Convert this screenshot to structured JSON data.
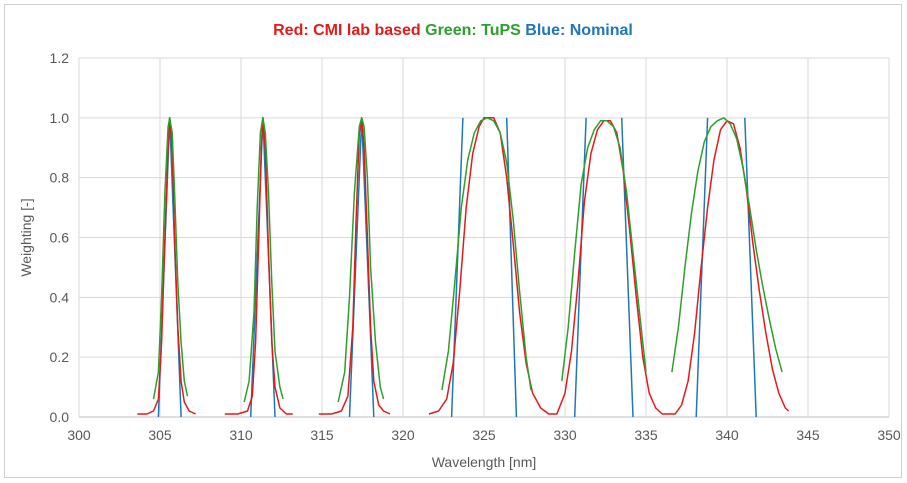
{
  "chart_data": {
    "type": "line",
    "title_parts": [
      {
        "text": "Red: CMI lab based",
        "color": "#e31a1c"
      },
      {
        "text": "Green: TuPS",
        "color": "#2ca02c"
      },
      {
        "text": "Blue: Nominal",
        "color": "#1f77b4"
      }
    ],
    "xlabel": "Wavelength [nm]",
    "ylabel": "Weighting [-]",
    "xlim": [
      300,
      350
    ],
    "ylim": [
      0,
      1.2
    ],
    "x_ticks": [
      300,
      305,
      310,
      315,
      320,
      325,
      330,
      335,
      340,
      345,
      350
    ],
    "y_ticks": [
      0.0,
      0.2,
      0.4,
      0.6,
      0.8,
      1.0,
      1.2
    ],
    "y_tick_labels": [
      "0.0",
      "0.2",
      "0.4",
      "0.6",
      "0.8",
      "1.0",
      "1.2"
    ],
    "grid": true,
    "series": [
      {
        "label": "Red: CMI lab based",
        "color": "#e31a1c",
        "points": [
          [
            303.6,
            0.01
          ],
          [
            304.2,
            0.01
          ],
          [
            304.6,
            0.02
          ],
          [
            304.9,
            0.06
          ],
          [
            305.1,
            0.25
          ],
          [
            305.3,
            0.6
          ],
          [
            305.5,
            0.9
          ],
          [
            305.6,
            1.0
          ],
          [
            305.75,
            0.9
          ],
          [
            305.9,
            0.6
          ],
          [
            306.1,
            0.3
          ],
          [
            306.3,
            0.12
          ],
          [
            306.5,
            0.05
          ],
          [
            306.8,
            0.02
          ],
          [
            307.2,
            0.01
          ],
          [
            309.0,
            0.01
          ],
          [
            309.8,
            0.01
          ],
          [
            310.4,
            0.02
          ],
          [
            310.7,
            0.07
          ],
          [
            310.9,
            0.25
          ],
          [
            311.1,
            0.6
          ],
          [
            311.25,
            0.9
          ],
          [
            311.35,
            1.0
          ],
          [
            311.5,
            0.9
          ],
          [
            311.7,
            0.55
          ],
          [
            311.9,
            0.25
          ],
          [
            312.1,
            0.1
          ],
          [
            312.4,
            0.03
          ],
          [
            312.8,
            0.01
          ],
          [
            313.2,
            0.01
          ],
          [
            314.8,
            0.01
          ],
          [
            315.6,
            0.01
          ],
          [
            316.2,
            0.02
          ],
          [
            316.6,
            0.07
          ],
          [
            316.9,
            0.3
          ],
          [
            317.1,
            0.65
          ],
          [
            317.3,
            0.95
          ],
          [
            317.45,
            1.0
          ],
          [
            317.6,
            0.9
          ],
          [
            317.8,
            0.6
          ],
          [
            318.0,
            0.3
          ],
          [
            318.2,
            0.12
          ],
          [
            318.5,
            0.04
          ],
          [
            318.8,
            0.02
          ],
          [
            319.2,
            0.01
          ],
          [
            321.6,
            0.01
          ],
          [
            322.2,
            0.02
          ],
          [
            322.7,
            0.06
          ],
          [
            323.1,
            0.18
          ],
          [
            323.5,
            0.42
          ],
          [
            323.9,
            0.7
          ],
          [
            324.3,
            0.88
          ],
          [
            324.7,
            0.97
          ],
          [
            325.0,
            1.0
          ],
          [
            325.3,
            1.0
          ],
          [
            325.6,
            1.0
          ],
          [
            326.0,
            0.95
          ],
          [
            326.4,
            0.8
          ],
          [
            326.8,
            0.58
          ],
          [
            327.2,
            0.35
          ],
          [
            327.6,
            0.18
          ],
          [
            328.0,
            0.08
          ],
          [
            328.5,
            0.03
          ],
          [
            329.0,
            0.01
          ],
          [
            329.5,
            0.01
          ],
          [
            330.0,
            0.08
          ],
          [
            330.4,
            0.22
          ],
          [
            330.8,
            0.45
          ],
          [
            331.2,
            0.72
          ],
          [
            331.6,
            0.88
          ],
          [
            332.0,
            0.96
          ],
          [
            332.4,
            0.99
          ],
          [
            332.8,
            0.99
          ],
          [
            333.2,
            0.95
          ],
          [
            333.6,
            0.82
          ],
          [
            334.0,
            0.62
          ],
          [
            334.4,
            0.4
          ],
          [
            334.8,
            0.2
          ],
          [
            335.2,
            0.08
          ],
          [
            335.6,
            0.03
          ],
          [
            336.0,
            0.01
          ],
          [
            336.5,
            0.01
          ],
          [
            336.8,
            0.01
          ],
          [
            337.2,
            0.04
          ],
          [
            337.6,
            0.12
          ],
          [
            338.0,
            0.28
          ],
          [
            338.4,
            0.5
          ],
          [
            338.8,
            0.7
          ],
          [
            339.2,
            0.86
          ],
          [
            339.6,
            0.96
          ],
          [
            340.0,
            0.99
          ],
          [
            340.4,
            0.98
          ],
          [
            340.8,
            0.9
          ],
          [
            341.2,
            0.76
          ],
          [
            341.6,
            0.58
          ],
          [
            342.0,
            0.42
          ],
          [
            342.4,
            0.28
          ],
          [
            342.8,
            0.16
          ],
          [
            343.2,
            0.08
          ],
          [
            343.6,
            0.03
          ],
          [
            343.8,
            0.02
          ]
        ]
      },
      {
        "label": "Green: TuPS",
        "color": "#2ca02c",
        "points": [
          [
            304.6,
            0.06
          ],
          [
            304.9,
            0.15
          ],
          [
            305.1,
            0.4
          ],
          [
            305.3,
            0.75
          ],
          [
            305.5,
            0.97
          ],
          [
            305.6,
            1.0
          ],
          [
            305.75,
            0.95
          ],
          [
            305.9,
            0.75
          ],
          [
            306.1,
            0.45
          ],
          [
            306.3,
            0.25
          ],
          [
            306.5,
            0.12
          ],
          [
            306.7,
            0.07
          ],
          [
            310.2,
            0.05
          ],
          [
            310.5,
            0.12
          ],
          [
            310.8,
            0.35
          ],
          [
            311.0,
            0.7
          ],
          [
            311.2,
            0.95
          ],
          [
            311.35,
            1.0
          ],
          [
            311.5,
            0.95
          ],
          [
            311.7,
            0.75
          ],
          [
            311.9,
            0.45
          ],
          [
            312.1,
            0.22
          ],
          [
            312.4,
            0.1
          ],
          [
            312.6,
            0.06
          ],
          [
            316.0,
            0.05
          ],
          [
            316.4,
            0.15
          ],
          [
            316.7,
            0.4
          ],
          [
            317.0,
            0.75
          ],
          [
            317.3,
            0.97
          ],
          [
            317.45,
            1.0
          ],
          [
            317.6,
            0.97
          ],
          [
            317.8,
            0.8
          ],
          [
            318.0,
            0.5
          ],
          [
            318.3,
            0.25
          ],
          [
            318.6,
            0.1
          ],
          [
            318.8,
            0.06
          ],
          [
            322.4,
            0.09
          ],
          [
            322.8,
            0.22
          ],
          [
            323.2,
            0.45
          ],
          [
            323.6,
            0.7
          ],
          [
            324.0,
            0.86
          ],
          [
            324.4,
            0.95
          ],
          [
            324.8,
            0.99
          ],
          [
            325.2,
            1.0
          ],
          [
            325.6,
            0.99
          ],
          [
            326.0,
            0.95
          ],
          [
            326.4,
            0.85
          ],
          [
            326.8,
            0.66
          ],
          [
            327.2,
            0.42
          ],
          [
            327.6,
            0.2
          ],
          [
            327.9,
            0.09
          ],
          [
            329.8,
            0.12
          ],
          [
            330.2,
            0.3
          ],
          [
            330.6,
            0.55
          ],
          [
            331.0,
            0.78
          ],
          [
            331.4,
            0.9
          ],
          [
            331.8,
            0.96
          ],
          [
            332.2,
            0.99
          ],
          [
            332.6,
            0.99
          ],
          [
            333.0,
            0.97
          ],
          [
            333.4,
            0.9
          ],
          [
            333.8,
            0.75
          ],
          [
            334.2,
            0.55
          ],
          [
            334.6,
            0.35
          ],
          [
            335.0,
            0.15
          ],
          [
            336.6,
            0.15
          ],
          [
            337.0,
            0.3
          ],
          [
            337.4,
            0.5
          ],
          [
            337.8,
            0.68
          ],
          [
            338.2,
            0.82
          ],
          [
            338.6,
            0.92
          ],
          [
            339.0,
            0.97
          ],
          [
            339.4,
            0.99
          ],
          [
            339.8,
            1.0
          ],
          [
            340.2,
            0.98
          ],
          [
            340.6,
            0.93
          ],
          [
            341.0,
            0.83
          ],
          [
            341.4,
            0.7
          ],
          [
            341.8,
            0.56
          ],
          [
            342.2,
            0.44
          ],
          [
            342.6,
            0.33
          ],
          [
            343.0,
            0.23
          ],
          [
            343.4,
            0.15
          ]
        ]
      },
      {
        "label": "Blue: Nominal",
        "color": "#1f77b4",
        "points": [
          [
            304.9,
            0.0
          ],
          [
            305.6,
            1.0
          ],
          [
            306.3,
            0.0
          ],
          [
            310.6,
            0.0
          ],
          [
            311.35,
            1.0
          ],
          [
            312.1,
            0.0
          ],
          [
            316.7,
            0.0
          ],
          [
            317.45,
            1.0
          ],
          [
            318.2,
            0.0
          ],
          [
            323.0,
            0.0
          ],
          [
            323.7,
            1.0
          ],
          [
            326.4,
            1.0
          ],
          [
            327.0,
            0.0
          ],
          [
            330.6,
            0.0
          ],
          [
            331.3,
            1.0
          ],
          [
            333.5,
            1.0
          ],
          [
            334.2,
            0.0
          ],
          [
            338.1,
            0.0
          ],
          [
            338.8,
            1.0
          ],
          [
            341.1,
            1.0
          ],
          [
            341.8,
            0.0
          ]
        ]
      }
    ]
  }
}
